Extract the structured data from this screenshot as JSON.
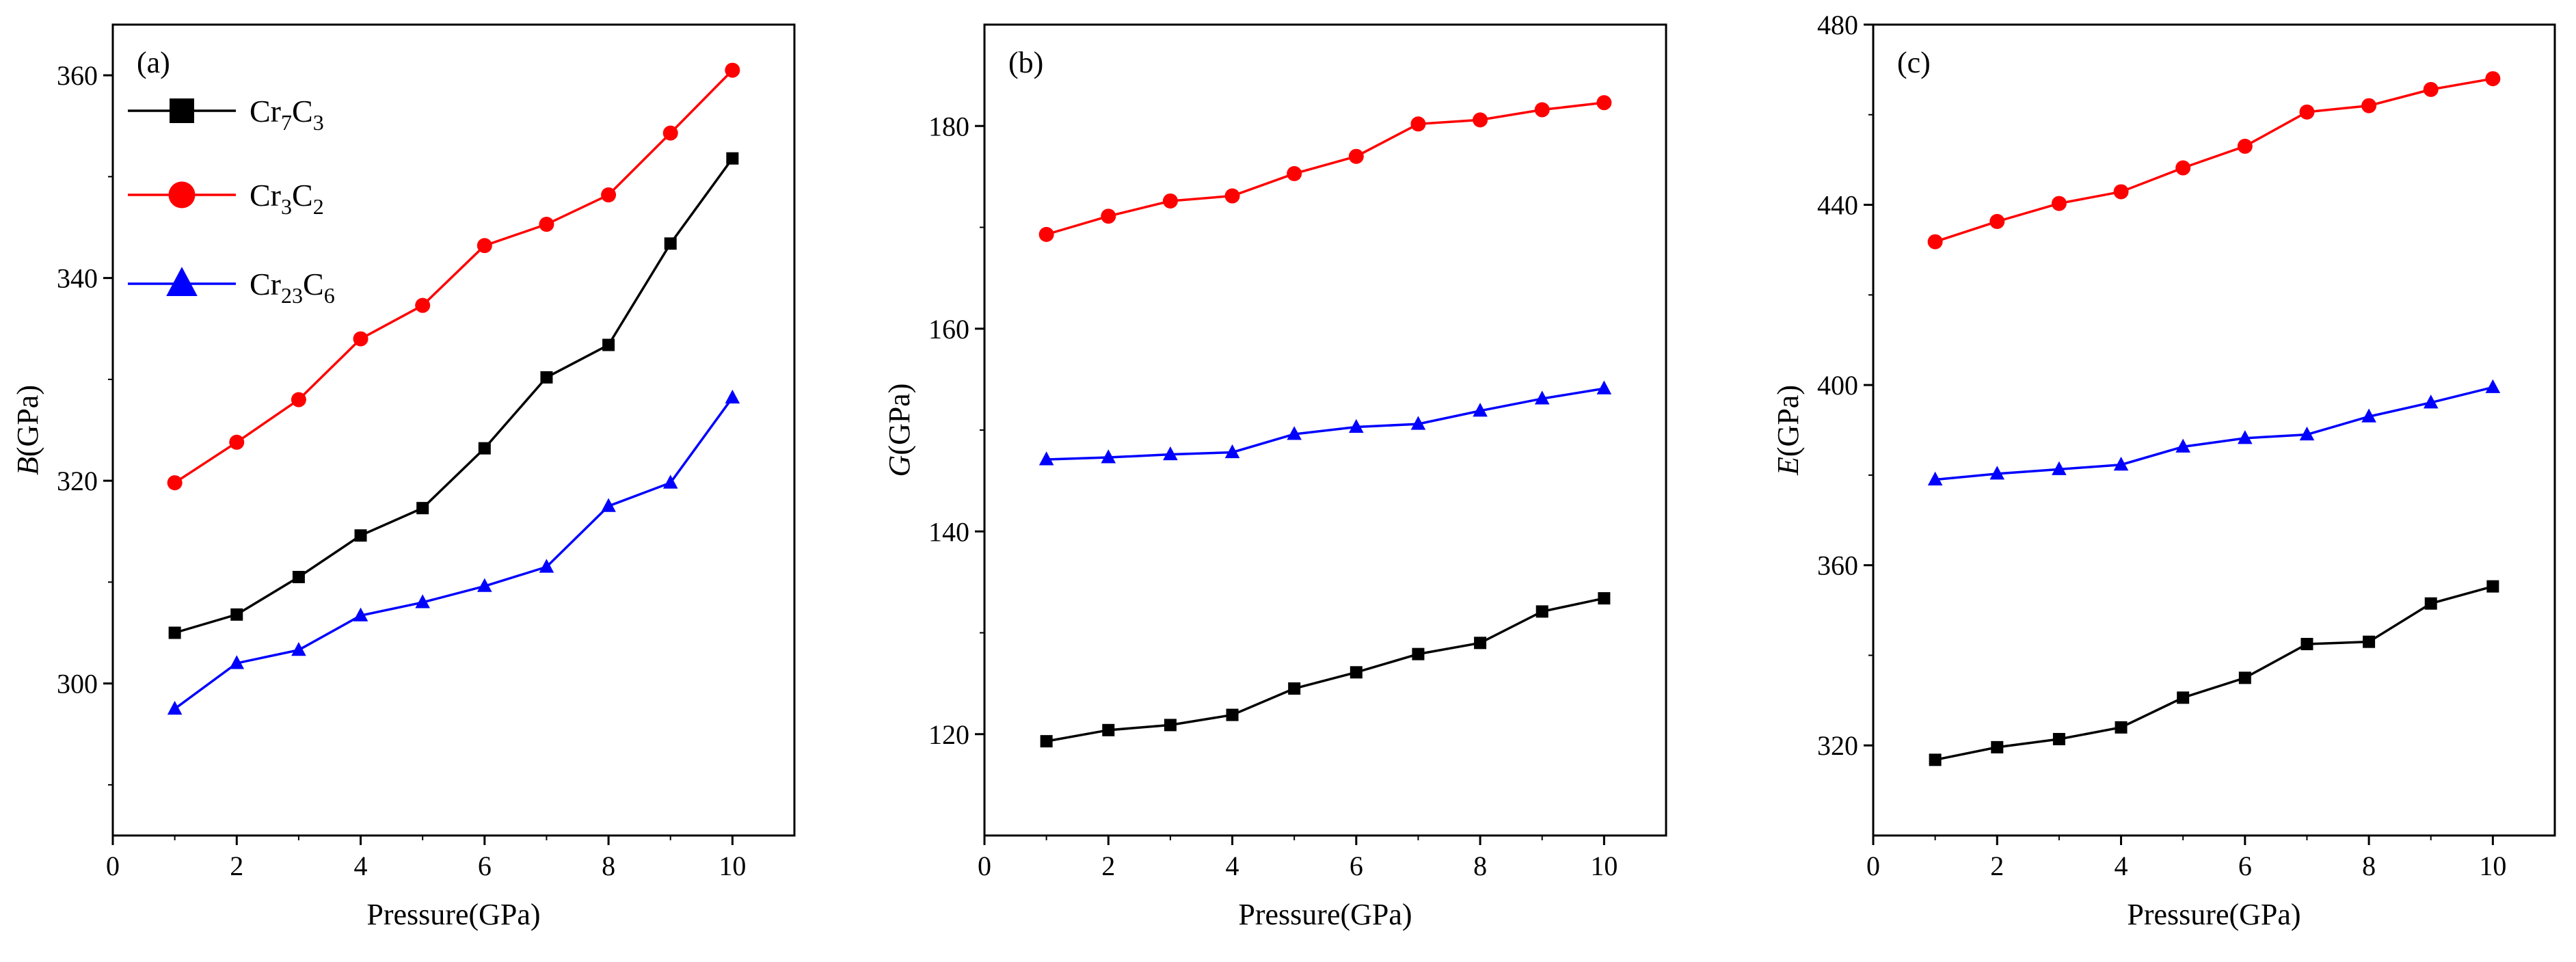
{
  "figure_title": "",
  "colors": {
    "Cr7C3": "#000000",
    "Cr3C2": "#ff0000",
    "Cr23C6": "#0000ff"
  },
  "legend": [
    {
      "id": "Cr7C3",
      "base": "Cr",
      "sub1": "7",
      "mid": "C",
      "sub2": "3",
      "marker": "square",
      "color": "#000000"
    },
    {
      "id": "Cr3C2",
      "base": "Cr",
      "sub1": "3",
      "mid": "C",
      "sub2": "2",
      "marker": "circle",
      "color": "#ff0000"
    },
    {
      "id": "Cr23C6",
      "base": "Cr",
      "sub1": "23",
      "mid": "C",
      "sub2": "6",
      "marker": "triangle",
      "color": "#0000ff"
    }
  ],
  "chart_data": [
    {
      "type": "line",
      "panel_label": "(a)",
      "title": "",
      "xlabel": "Pressure(GPa)",
      "ylabel_italic": "B",
      "ylabel_rest": "(GPa)",
      "xlim": [
        0,
        11
      ],
      "ylim": [
        285,
        365
      ],
      "xticks": [
        0,
        2,
        4,
        6,
        8,
        10
      ],
      "yticks": [
        300,
        320,
        340,
        360
      ],
      "grid": false,
      "legend_position": "top-left",
      "x": [
        1,
        2,
        3,
        4,
        5,
        6,
        7,
        8,
        9,
        10
      ],
      "series": [
        {
          "name": "Cr7C3",
          "marker": "square",
          "color": "#000000",
          "values": [
            305.0,
            306.8,
            310.5,
            314.6,
            317.3,
            323.2,
            330.2,
            333.4,
            343.4,
            351.8
          ]
        },
        {
          "name": "Cr3C2",
          "marker": "circle",
          "color": "#ff0000",
          "values": [
            319.8,
            323.8,
            328.0,
            334.0,
            337.3,
            343.2,
            345.3,
            348.2,
            354.3,
            360.5
          ]
        },
        {
          "name": "Cr23C6",
          "marker": "triangle",
          "color": "#0000ff",
          "values": [
            297.5,
            302.0,
            303.3,
            306.7,
            308.0,
            309.6,
            311.5,
            317.5,
            319.8,
            328.2
          ]
        }
      ]
    },
    {
      "type": "line",
      "panel_label": "(b)",
      "title": "",
      "xlabel": "Pressure(GPa)",
      "ylabel_italic": "G",
      "ylabel_rest": "(GPa)",
      "xlim": [
        0,
        11
      ],
      "ylim": [
        110,
        190
      ],
      "xticks": [
        0,
        2,
        4,
        6,
        8,
        10
      ],
      "yticks": [
        120,
        140,
        160,
        180
      ],
      "grid": false,
      "legend_position": "none",
      "x": [
        1,
        2,
        3,
        4,
        5,
        6,
        7,
        8,
        9,
        10
      ],
      "series": [
        {
          "name": "Cr7C3",
          "marker": "square",
          "color": "#000000",
          "values": [
            119.3,
            120.4,
            120.9,
            121.9,
            124.5,
            126.1,
            127.9,
            129.0,
            132.1,
            133.4
          ]
        },
        {
          "name": "Cr3C2",
          "marker": "circle",
          "color": "#ff0000",
          "values": [
            169.3,
            171.1,
            172.6,
            173.1,
            175.3,
            177.0,
            180.2,
            180.6,
            181.6,
            182.3
          ]
        },
        {
          "name": "Cr23C6",
          "marker": "triangle",
          "color": "#0000ff",
          "values": [
            147.1,
            147.3,
            147.6,
            147.8,
            149.6,
            150.3,
            150.6,
            151.9,
            153.1,
            154.1
          ]
        }
      ]
    },
    {
      "type": "line",
      "panel_label": "(c)",
      "title": "",
      "xlabel": "Pressure(GPa)",
      "ylabel_italic": "E",
      "ylabel_rest": "(GPa)",
      "xlim": [
        0,
        11
      ],
      "ylim": [
        300,
        480
      ],
      "xticks": [
        0,
        2,
        4,
        6,
        8,
        10
      ],
      "yticks": [
        320,
        360,
        400,
        440,
        480
      ],
      "grid": false,
      "legend_position": "none",
      "x": [
        1,
        2,
        3,
        4,
        5,
        6,
        7,
        8,
        9,
        10
      ],
      "series": [
        {
          "name": "Cr7C3",
          "marker": "square",
          "color": "#000000",
          "values": [
            316.8,
            319.6,
            321.4,
            324.0,
            330.6,
            335.0,
            342.5,
            343.0,
            351.5,
            355.3
          ]
        },
        {
          "name": "Cr3C2",
          "marker": "circle",
          "color": "#ff0000",
          "values": [
            431.8,
            436.3,
            440.3,
            442.9,
            448.2,
            453.0,
            460.6,
            462.0,
            465.6,
            468.0
          ]
        },
        {
          "name": "Cr23C6",
          "marker": "triangle",
          "color": "#0000ff",
          "values": [
            379.0,
            380.3,
            381.3,
            382.3,
            386.3,
            388.2,
            389.0,
            393.0,
            396.1,
            399.5
          ]
        }
      ]
    }
  ]
}
